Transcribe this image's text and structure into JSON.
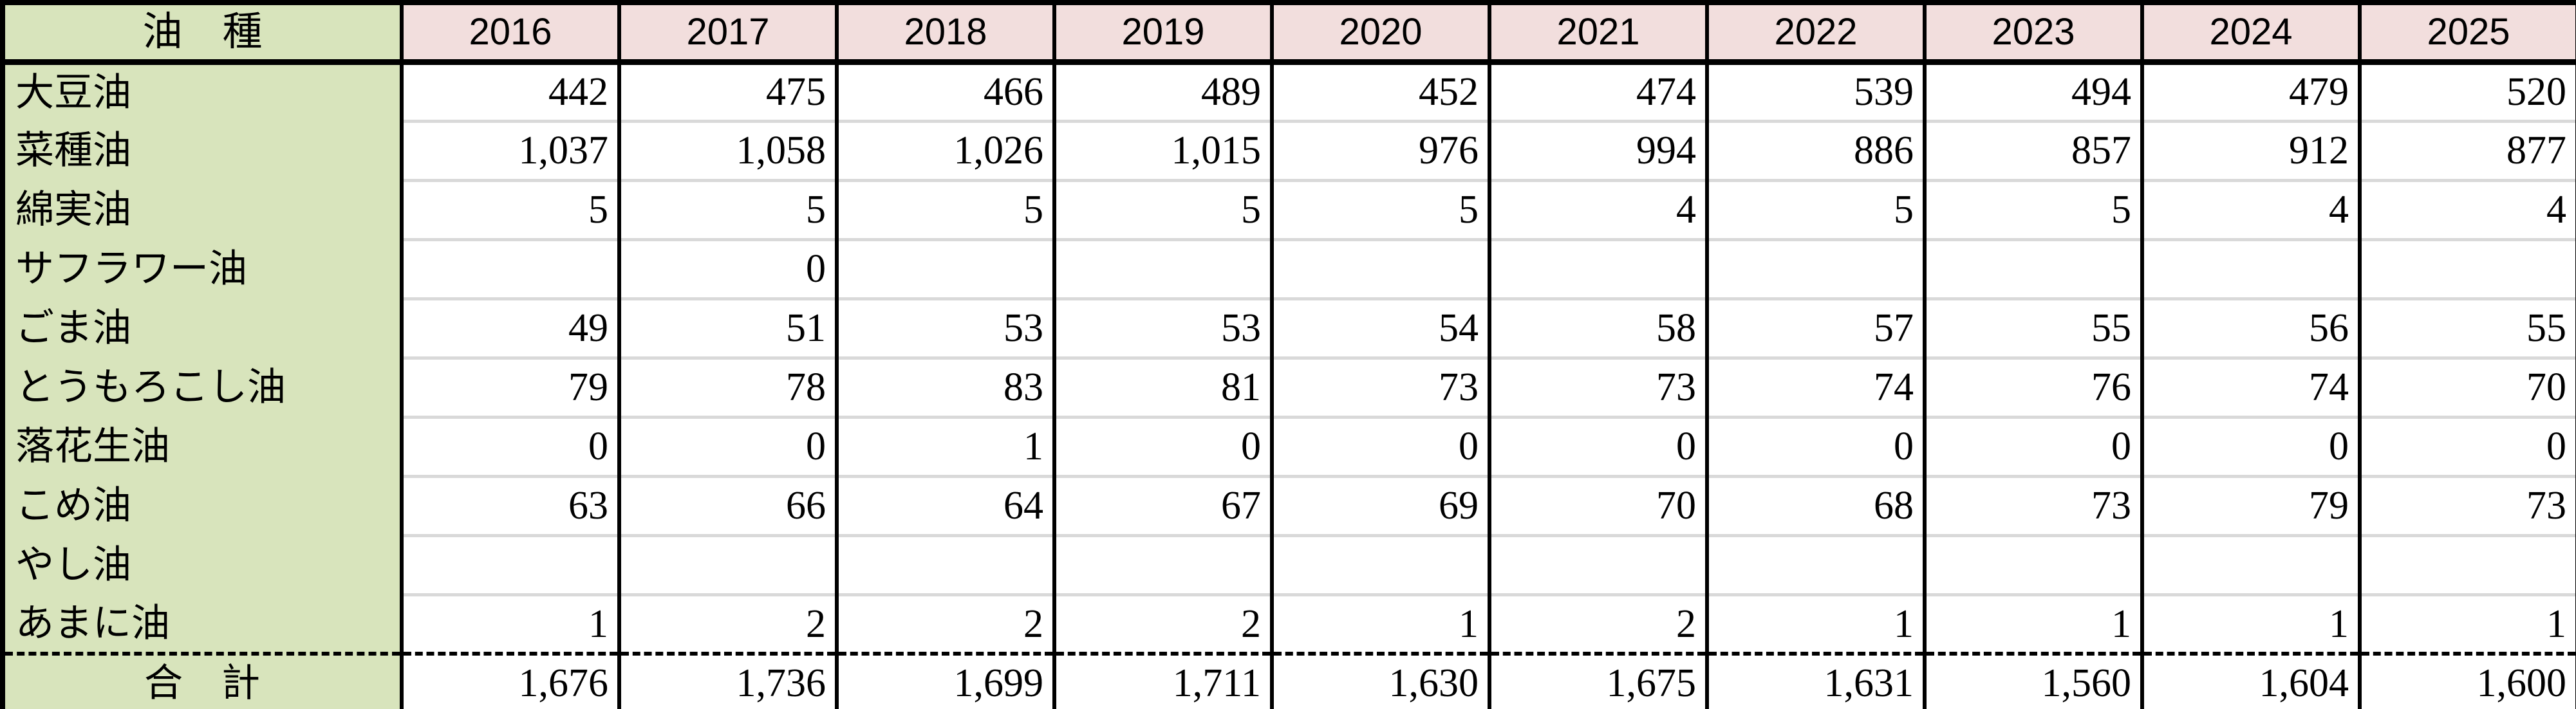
{
  "chart_data": {
    "type": "table",
    "title": "",
    "corner_label": "油　種",
    "columns": [
      "2016",
      "2017",
      "2018",
      "2019",
      "2020",
      "2021",
      "2022",
      "2023",
      "2024",
      "2025"
    ],
    "rows": [
      {
        "label": "大豆油",
        "values": [
          "442",
          "475",
          "466",
          "489",
          "452",
          "474",
          "539",
          "494",
          "479",
          "520"
        ]
      },
      {
        "label": "菜種油",
        "values": [
          "1,037",
          "1,058",
          "1,026",
          "1,015",
          "976",
          "994",
          "886",
          "857",
          "912",
          "877"
        ]
      },
      {
        "label": "綿実油",
        "values": [
          "5",
          "5",
          "5",
          "5",
          "5",
          "4",
          "5",
          "5",
          "4",
          "4"
        ]
      },
      {
        "label": "サフラワー油",
        "values": [
          "",
          "0",
          "",
          "",
          "",
          "",
          "",
          "",
          "",
          ""
        ]
      },
      {
        "label": "ごま油",
        "values": [
          "49",
          "51",
          "53",
          "53",
          "54",
          "58",
          "57",
          "55",
          "56",
          "55"
        ]
      },
      {
        "label": "とうもろこし油",
        "values": [
          "79",
          "78",
          "83",
          "81",
          "73",
          "73",
          "74",
          "76",
          "74",
          "70"
        ]
      },
      {
        "label": "落花生油",
        "values": [
          "0",
          "0",
          "1",
          "0",
          "0",
          "0",
          "0",
          "0",
          "0",
          "0"
        ]
      },
      {
        "label": "こめ油",
        "values": [
          "63",
          "66",
          "64",
          "67",
          "69",
          "70",
          "68",
          "73",
          "79",
          "73"
        ]
      },
      {
        "label": "やし油",
        "values": [
          "",
          "",
          "",
          "",
          "",
          "",
          "",
          "",
          "",
          ""
        ]
      },
      {
        "label": "あまに油",
        "values": [
          "1",
          "2",
          "2",
          "2",
          "1",
          "2",
          "1",
          "1",
          "1",
          "1"
        ]
      }
    ],
    "total_row": {
      "label": "合　計",
      "values": [
        "1,676",
        "1,736",
        "1,699",
        "1,711",
        "1,630",
        "1,675",
        "1,631",
        "1,560",
        "1,604",
        "1,600"
      ]
    },
    "layout_hints": {
      "label_column_bg": "#D8E4BC",
      "year_header_bg": "#F2DEDD",
      "gridline_color": "#D9D9D9",
      "border_color": "#000000",
      "total_separator_style": "dashed",
      "value_alignment": "right"
    }
  }
}
